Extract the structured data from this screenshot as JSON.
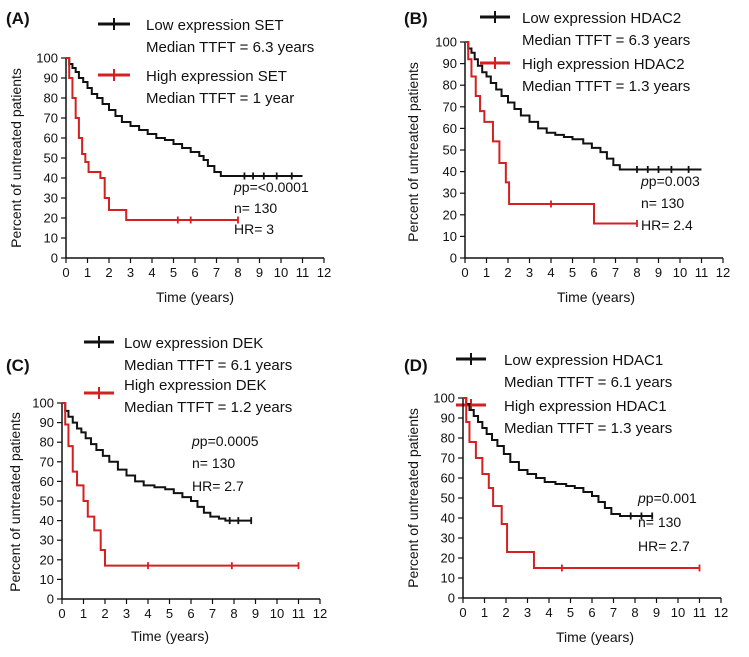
{
  "colors": {
    "low": "#111111",
    "high": "#d42020",
    "axis": "#111111"
  },
  "chart_data": [
    {
      "type": "line",
      "panel": "(A)",
      "xlabel": "Time (years)",
      "ylabel": "Percent of untreated patients",
      "xlim": [
        0,
        12
      ],
      "ylim": [
        0,
        100
      ],
      "xticks": [
        "0",
        "1",
        "2",
        "3",
        "4",
        "5",
        "6",
        "7",
        "8",
        "9",
        "10",
        "11",
        "12"
      ],
      "yticks": [
        "0",
        "10",
        "20",
        "30",
        "40",
        "50",
        "60",
        "70",
        "80",
        "90",
        "100"
      ],
      "series": [
        {
          "name": "Low expression SET",
          "median": "Median TTFT = 6.3 years",
          "steps": [
            [
              0,
              100
            ],
            [
              0.15,
              97
            ],
            [
              0.3,
              95
            ],
            [
              0.45,
              93
            ],
            [
              0.6,
              90
            ],
            [
              0.8,
              88
            ],
            [
              1.0,
              85
            ],
            [
              1.2,
              82
            ],
            [
              1.45,
              80
            ],
            [
              1.7,
              77
            ],
            [
              2.0,
              74
            ],
            [
              2.3,
              71
            ],
            [
              2.6,
              68
            ],
            [
              3.0,
              66
            ],
            [
              3.4,
              64
            ],
            [
              3.8,
              62
            ],
            [
              4.2,
              60
            ],
            [
              4.6,
              59
            ],
            [
              5.0,
              57
            ],
            [
              5.4,
              55
            ],
            [
              5.8,
              53
            ],
            [
              6.2,
              51
            ],
            [
              6.4,
              49
            ],
            [
              6.6,
              46
            ],
            [
              6.9,
              43
            ],
            [
              7.2,
              41
            ],
            [
              8.0,
              41
            ],
            [
              11.0,
              41
            ]
          ],
          "censors": [
            [
              8.3,
              41
            ],
            [
              8.7,
              41
            ],
            [
              9.2,
              41
            ],
            [
              9.8,
              41
            ],
            [
              10.5,
              41
            ]
          ]
        },
        {
          "name": "High expression SET",
          "median": "Median TTFT = 1 year",
          "steps": [
            [
              0,
              100
            ],
            [
              0.15,
              90
            ],
            [
              0.3,
              80
            ],
            [
              0.45,
              70
            ],
            [
              0.6,
              60
            ],
            [
              0.75,
              52
            ],
            [
              0.9,
              48
            ],
            [
              1.05,
              43
            ],
            [
              1.6,
              40
            ],
            [
              1.8,
              30
            ],
            [
              2.0,
              24
            ],
            [
              2.8,
              19
            ],
            [
              8.0,
              19
            ]
          ],
          "censors": [
            [
              5.2,
              19
            ],
            [
              5.8,
              19
            ],
            [
              8.0,
              19
            ]
          ]
        }
      ],
      "stats": [
        "p=<0.0001",
        "n= 130",
        "HR= 3"
      ]
    },
    {
      "type": "line",
      "panel": "(B)",
      "xlabel": "Time (years)",
      "ylabel": "Percent of untreated patients",
      "xlim": [
        0,
        12
      ],
      "ylim": [
        0,
        100
      ],
      "xticks": [
        "0",
        "1",
        "2",
        "3",
        "4",
        "5",
        "6",
        "7",
        "8",
        "9",
        "10",
        "11",
        "12"
      ],
      "yticks": [
        "0",
        "10",
        "20",
        "30",
        "40",
        "50",
        "60",
        "70",
        "80",
        "90",
        "100"
      ],
      "series": [
        {
          "name": "Low expression HDAC2",
          "median": "Median TTFT = 6.3 years",
          "steps": [
            [
              0,
              100
            ],
            [
              0.15,
              97
            ],
            [
              0.3,
              95
            ],
            [
              0.45,
              92
            ],
            [
              0.6,
              89
            ],
            [
              0.8,
              86
            ],
            [
              1.0,
              84
            ],
            [
              1.2,
              81
            ],
            [
              1.45,
              78
            ],
            [
              1.7,
              75
            ],
            [
              2.0,
              72
            ],
            [
              2.3,
              69
            ],
            [
              2.6,
              66
            ],
            [
              3.0,
              63
            ],
            [
              3.4,
              60
            ],
            [
              3.8,
              58
            ],
            [
              4.2,
              57
            ],
            [
              4.6,
              56
            ],
            [
              5.0,
              55
            ],
            [
              5.5,
              53
            ],
            [
              5.9,
              51
            ],
            [
              6.3,
              49
            ],
            [
              6.6,
              46
            ],
            [
              6.9,
              43
            ],
            [
              7.2,
              41
            ],
            [
              11.0,
              41
            ]
          ],
          "censors": [
            [
              8.0,
              41
            ],
            [
              8.5,
              41
            ],
            [
              9.0,
              41
            ],
            [
              9.6,
              41
            ],
            [
              10.4,
              41
            ]
          ]
        },
        {
          "name": "High expression HDAC2",
          "median": "Median TTFT = 1.3 years",
          "steps": [
            [
              0,
              100
            ],
            [
              0.15,
              92
            ],
            [
              0.3,
              84
            ],
            [
              0.5,
              75
            ],
            [
              0.7,
              68
            ],
            [
              0.9,
              63
            ],
            [
              1.3,
              54
            ],
            [
              1.6,
              44
            ],
            [
              1.9,
              35
            ],
            [
              2.05,
              25
            ],
            [
              6.0,
              16
            ],
            [
              8.0,
              16
            ]
          ],
          "censors": [
            [
              4.0,
              25
            ],
            [
              8.0,
              16
            ]
          ]
        }
      ],
      "stats": [
        "p=0.003",
        "n= 130",
        "HR= 2.4"
      ]
    },
    {
      "type": "line",
      "panel": "(C)",
      "xlabel": "Time (years)",
      "ylabel": "Percent of untreated patients",
      "xlim": [
        0,
        12
      ],
      "ylim": [
        0,
        100
      ],
      "xticks": [
        "0",
        "1",
        "2",
        "3",
        "4",
        "5",
        "6",
        "7",
        "8",
        "9",
        "10",
        "11",
        "12"
      ],
      "yticks": [
        "0",
        "10",
        "20",
        "30",
        "40",
        "50",
        "60",
        "70",
        "80",
        "90",
        "100"
      ],
      "series": [
        {
          "name": "Low expression DEK",
          "median": "Median TTFT = 6.1 years",
          "steps": [
            [
              0,
              100
            ],
            [
              0.15,
              96
            ],
            [
              0.3,
              93
            ],
            [
              0.5,
              90
            ],
            [
              0.7,
              87
            ],
            [
              0.9,
              85
            ],
            [
              1.1,
              82
            ],
            [
              1.35,
              79
            ],
            [
              1.6,
              76
            ],
            [
              1.9,
              73
            ],
            [
              2.2,
              70
            ],
            [
              2.6,
              66
            ],
            [
              3.0,
              63
            ],
            [
              3.4,
              60
            ],
            [
              3.8,
              58
            ],
            [
              4.3,
              57
            ],
            [
              4.8,
              56
            ],
            [
              5.2,
              54
            ],
            [
              5.6,
              52
            ],
            [
              6.0,
              50
            ],
            [
              6.3,
              47
            ],
            [
              6.6,
              44
            ],
            [
              6.9,
              42
            ],
            [
              7.3,
              41
            ],
            [
              7.6,
              40
            ],
            [
              8.8,
              40
            ]
          ],
          "censors": [
            [
              7.8,
              40
            ],
            [
              8.2,
              40
            ],
            [
              8.8,
              40
            ]
          ]
        },
        {
          "name": "High expression DEK",
          "median": "Median TTFT = 1.2 years",
          "steps": [
            [
              0,
              100
            ],
            [
              0.15,
              89
            ],
            [
              0.3,
              78
            ],
            [
              0.5,
              65
            ],
            [
              0.7,
              58
            ],
            [
              1.0,
              50
            ],
            [
              1.2,
              42
            ],
            [
              1.5,
              35
            ],
            [
              1.8,
              25
            ],
            [
              2.0,
              17
            ],
            [
              11.0,
              17
            ]
          ],
          "censors": [
            [
              4.0,
              17
            ],
            [
              7.9,
              17
            ],
            [
              11.0,
              17
            ]
          ]
        }
      ],
      "stats": [
        "p=0.0005",
        "n= 130",
        "HR= 2.7"
      ]
    },
    {
      "type": "line",
      "panel": "(D)",
      "xlabel": "Time (years)",
      "ylabel": "Percent of untreated patients",
      "xlim": [
        0,
        12
      ],
      "ylim": [
        0,
        100
      ],
      "xticks": [
        "0",
        "1",
        "2",
        "3",
        "4",
        "5",
        "6",
        "7",
        "8",
        "9",
        "10",
        "11",
        "12"
      ],
      "yticks": [
        "0",
        "10",
        "20",
        "30",
        "40",
        "50",
        "60",
        "70",
        "80",
        "90",
        "100"
      ],
      "series": [
        {
          "name": "Low expression HDAC1",
          "median": "Median TTFT = 6.1 years",
          "steps": [
            [
              0,
              100
            ],
            [
              0.15,
              97
            ],
            [
              0.3,
              94
            ],
            [
              0.5,
              91
            ],
            [
              0.7,
              88
            ],
            [
              0.9,
              85
            ],
            [
              1.1,
              82
            ],
            [
              1.35,
              79
            ],
            [
              1.6,
              76
            ],
            [
              1.9,
              72
            ],
            [
              2.2,
              68
            ],
            [
              2.6,
              64
            ],
            [
              3.0,
              62
            ],
            [
              3.4,
              60
            ],
            [
              3.8,
              58
            ],
            [
              4.3,
              57
            ],
            [
              4.8,
              56
            ],
            [
              5.2,
              55
            ],
            [
              5.6,
              53
            ],
            [
              6.0,
              51
            ],
            [
              6.3,
              48
            ],
            [
              6.6,
              45
            ],
            [
              6.9,
              42
            ],
            [
              7.3,
              41
            ],
            [
              8.8,
              41
            ]
          ],
          "censors": [
            [
              7.8,
              41
            ],
            [
              8.3,
              41
            ],
            [
              8.8,
              41
            ]
          ]
        },
        {
          "name": "High expression HDAC1",
          "median": "Median TTFT = 1.3 years",
          "steps": [
            [
              0,
              100
            ],
            [
              0.15,
              88
            ],
            [
              0.3,
              78
            ],
            [
              0.6,
              70
            ],
            [
              0.9,
              62
            ],
            [
              1.2,
              55
            ],
            [
              1.4,
              46
            ],
            [
              1.8,
              37
            ],
            [
              2.05,
              23
            ],
            [
              3.3,
              15
            ],
            [
              11.0,
              15
            ]
          ],
          "censors": [
            [
              4.6,
              15
            ],
            [
              11.0,
              15
            ]
          ]
        }
      ],
      "stats": [
        "p=0.001",
        "n= 130",
        "HR= 2.7"
      ]
    }
  ]
}
